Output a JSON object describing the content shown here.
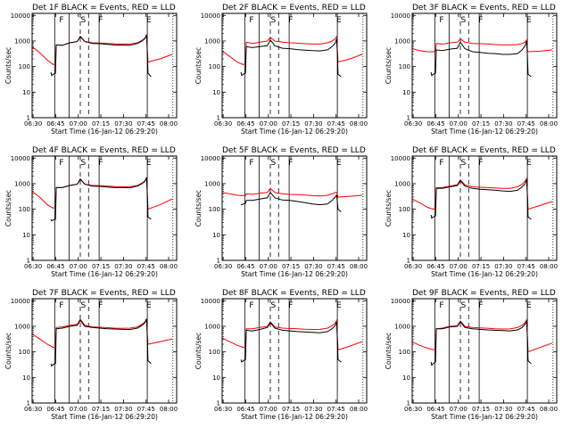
{
  "chart_data": {
    "type": "line",
    "layout": "3x3 grid",
    "shared": {
      "ylabel": "Counts/sec",
      "xlabel": "Start Time (16-Jan-12 06:29:20)",
      "x_tick_labels": [
        "06:30",
        "06:45",
        "07:00",
        "07:15",
        "07:30",
        "07:45",
        "08:00"
      ],
      "x_tick_minutes": [
        0.67,
        15.67,
        30.67,
        45.67,
        60.67,
        75.67,
        90.67
      ],
      "xlim_minutes": [
        0,
        96
      ],
      "y_tick_labels": [
        "1",
        "10",
        "100",
        "1000",
        "10000"
      ],
      "y_tick_values": [
        1,
        10,
        100,
        1000,
        10000
      ],
      "ylim": [
        1,
        12000
      ],
      "yscale": "log",
      "interval_letters": [
        {
          "text": "F",
          "minute": 19.5
        },
        {
          "text": "S",
          "minute": 34.0
        },
        {
          "text": "F",
          "minute": 45.5
        },
        {
          "text": "E",
          "minute": 77.5
        }
      ],
      "solid_lines_minutes": [
        15.0,
        24.5,
        44.5,
        76.5
      ],
      "dashed_lines_minutes": [
        32.0,
        37.5
      ],
      "dotted_lines_minutes": [
        93.5
      ],
      "series": [
        {
          "name": "Events",
          "color": "#000000"
        },
        {
          "name": "LLD",
          "color": "#ff0000"
        }
      ]
    },
    "panels": [
      {
        "title": "Det 1F BLACK = Events, RED = LLD",
        "events_x": [
          12.5,
          13.0,
          14.0,
          15.5,
          16.0,
          20.0,
          25.0,
          30.0,
          32.0,
          35.0,
          40.0,
          45.0,
          50.0,
          55.0,
          60.0,
          65.0,
          70.0,
          73.0,
          75.0,
          76.0,
          76.5,
          77.0,
          79.0
        ],
        "events_y": [
          60,
          45,
          50,
          55,
          700,
          680,
          850,
          950,
          1500,
          950,
          800,
          780,
          740,
          700,
          690,
          680,
          800,
          1000,
          1250,
          1700,
          400,
          55,
          40
        ],
        "lld_x": [
          0.0,
          5.0,
          10.0,
          14.0,
          15.5,
          16.0,
          20.0,
          25.0,
          30.0,
          32.0,
          35.0,
          40.0,
          45.0,
          50.0,
          55.0,
          60.0,
          65.0,
          70.0,
          73.0,
          75.0,
          76.0,
          76.5,
          77.0,
          85.0,
          93.0
        ],
        "lld_y": [
          600,
          350,
          180,
          120,
          130,
          700,
          680,
          850,
          950,
          1500,
          950,
          850,
          830,
          800,
          770,
          760,
          760,
          850,
          1050,
          1300,
          1800,
          450,
          150,
          200,
          300
        ]
      },
      {
        "title": "Det 2F BLACK = Events, RED = LLD",
        "events_x": [
          12.5,
          13.0,
          14.0,
          15.5,
          16.0,
          20.0,
          25.0,
          30.0,
          32.0,
          35.0,
          40.0,
          45.0,
          50.0,
          55.0,
          60.0,
          65.0,
          70.0,
          73.0,
          75.0,
          76.0,
          76.5,
          77.0,
          79.0
        ],
        "events_y": [
          60,
          45,
          50,
          55,
          600,
          550,
          600,
          650,
          1100,
          650,
          520,
          500,
          460,
          440,
          420,
          410,
          450,
          600,
          800,
          1200,
          350,
          50,
          40
        ],
        "lld_x": [
          0.0,
          5.0,
          10.0,
          14.0,
          15.5,
          16.0,
          20.0,
          25.0,
          30.0,
          32.0,
          35.0,
          40.0,
          45.0,
          50.0,
          55.0,
          60.0,
          65.0,
          70.0,
          73.0,
          75.0,
          76.0,
          76.5,
          77.0,
          85.0,
          93.0
        ],
        "lld_y": [
          400,
          250,
          150,
          120,
          130,
          900,
          800,
          900,
          1000,
          1400,
          1000,
          900,
          850,
          820,
          780,
          760,
          760,
          850,
          1000,
          1200,
          1500,
          450,
          150,
          200,
          300
        ]
      },
      {
        "title": "Det 3F BLACK = Events, RED = LLD",
        "events_x": [
          12.5,
          13.0,
          14.0,
          15.5,
          16.0,
          20.0,
          25.0,
          30.0,
          32.0,
          35.0,
          40.0,
          45.0,
          50.0,
          55.0,
          60.0,
          65.0,
          70.0,
          73.0,
          75.0,
          76.0,
          76.5,
          77.0,
          79.0
        ],
        "events_y": [
          60,
          45,
          50,
          55,
          450,
          420,
          480,
          520,
          900,
          500,
          380,
          360,
          330,
          320,
          300,
          300,
          320,
          450,
          650,
          1000,
          300,
          50,
          40
        ],
        "lld_x": [
          0.0,
          5.0,
          10.0,
          14.0,
          15.5,
          16.0,
          20.0,
          25.0,
          30.0,
          32.0,
          35.0,
          40.0,
          45.0,
          50.0,
          55.0,
          60.0,
          65.0,
          70.0,
          73.0,
          75.0,
          76.0,
          76.5,
          77.0,
          85.0,
          93.0
        ],
        "lld_y": [
          500,
          420,
          380,
          380,
          390,
          800,
          750,
          850,
          900,
          1200,
          900,
          800,
          780,
          760,
          720,
          700,
          700,
          720,
          800,
          900,
          1100,
          450,
          380,
          400,
          450
        ]
      },
      {
        "title": "Det 4F BLACK = Events, RED = LLD",
        "events_x": [
          12.5,
          13.0,
          14.0,
          15.5,
          16.0,
          20.0,
          25.0,
          30.0,
          32.0,
          35.0,
          40.0,
          45.0,
          50.0,
          55.0,
          60.0,
          65.0,
          70.0,
          73.0,
          75.0,
          76.0,
          76.5,
          77.0,
          79.0
        ],
        "events_y": [
          40,
          35,
          38,
          40,
          700,
          700,
          850,
          950,
          1500,
          950,
          800,
          780,
          740,
          700,
          700,
          690,
          800,
          1000,
          1250,
          1700,
          400,
          50,
          40
        ],
        "lld_x": [
          0.0,
          5.0,
          10.0,
          14.0,
          15.5,
          16.0,
          20.0,
          25.0,
          30.0,
          32.0,
          35.0,
          40.0,
          45.0,
          50.0,
          55.0,
          60.0,
          65.0,
          70.0,
          73.0,
          75.0,
          76.0,
          76.5,
          77.0,
          85.0,
          93.0
        ],
        "lld_y": [
          500,
          300,
          150,
          110,
          120,
          700,
          700,
          850,
          950,
          1500,
          950,
          850,
          830,
          800,
          770,
          760,
          760,
          850,
          1050,
          1300,
          1800,
          450,
          100,
          150,
          250
        ]
      },
      {
        "title": "Det 5F BLACK = Events, RED = LLD",
        "events_x": [
          12.5,
          13.0,
          14.0,
          15.5,
          16.0,
          20.0,
          25.0,
          30.0,
          32.0,
          35.0,
          40.0,
          45.0,
          50.0,
          55.0,
          60.0,
          65.0,
          70.0,
          73.0,
          75.0,
          76.0,
          76.5,
          77.0,
          79.0
        ],
        "events_y": [
          150,
          150,
          160,
          170,
          220,
          220,
          250,
          280,
          450,
          280,
          230,
          220,
          200,
          180,
          160,
          150,
          160,
          220,
          300,
          350,
          200,
          100,
          80
        ],
        "lld_x": [
          0.0,
          5.0,
          10.0,
          14.0,
          15.5,
          16.0,
          20.0,
          25.0,
          30.0,
          32.0,
          35.0,
          40.0,
          45.0,
          50.0,
          55.0,
          60.0,
          65.0,
          70.0,
          73.0,
          75.0,
          76.0,
          76.5,
          77.0,
          85.0,
          93.0
        ],
        "lld_y": [
          450,
          400,
          350,
          340,
          340,
          400,
          380,
          420,
          450,
          650,
          450,
          400,
          380,
          370,
          360,
          340,
          330,
          350,
          400,
          450,
          450,
          380,
          300,
          320,
          350
        ]
      },
      {
        "title": "Det 6F BLACK = Events, RED = LLD",
        "events_x": [
          12.5,
          13.0,
          14.0,
          15.5,
          16.0,
          20.0,
          25.0,
          30.0,
          32.0,
          35.0,
          40.0,
          45.0,
          50.0,
          55.0,
          60.0,
          65.0,
          70.0,
          73.0,
          75.0,
          76.0,
          76.5,
          77.0,
          79.0
        ],
        "events_y": [
          60,
          45,
          50,
          55,
          650,
          650,
          750,
          850,
          1300,
          800,
          650,
          600,
          580,
          560,
          520,
          500,
          550,
          750,
          1000,
          1500,
          350,
          50,
          40
        ],
        "lld_x": [
          0.0,
          5.0,
          10.0,
          14.0,
          15.5,
          16.0,
          20.0,
          25.0,
          30.0,
          32.0,
          35.0,
          40.0,
          45.0,
          50.0,
          55.0,
          60.0,
          65.0,
          70.0,
          73.0,
          75.0,
          76.0,
          76.5,
          77.0,
          85.0,
          93.0
        ],
        "lld_y": [
          250,
          180,
          120,
          100,
          110,
          700,
          700,
          800,
          900,
          1400,
          900,
          750,
          720,
          700,
          680,
          650,
          650,
          750,
          950,
          1250,
          1600,
          400,
          100,
          140,
          200
        ]
      },
      {
        "title": "Det 7F BLACK = Events, RED = LLD",
        "events_x": [
          12.5,
          13.0,
          14.0,
          15.5,
          16.0,
          20.0,
          25.0,
          30.0,
          32.0,
          35.0,
          40.0,
          45.0,
          50.0,
          55.0,
          60.0,
          65.0,
          70.0,
          73.0,
          75.0,
          76.0,
          76.5,
          77.0,
          79.0
        ],
        "events_y": [
          35,
          28,
          32,
          35,
          800,
          850,
          1000,
          1100,
          1700,
          1000,
          900,
          850,
          800,
          780,
          760,
          750,
          850,
          1100,
          1400,
          1900,
          400,
          45,
          35
        ],
        "lld_x": [
          0.0,
          5.0,
          10.0,
          14.0,
          15.5,
          16.0,
          20.0,
          25.0,
          30.0,
          32.0,
          35.0,
          40.0,
          45.0,
          50.0,
          55.0,
          60.0,
          65.0,
          70.0,
          73.0,
          75.0,
          76.0,
          76.5,
          77.0,
          85.0,
          93.0
        ],
        "lld_y": [
          500,
          320,
          200,
          150,
          160,
          900,
          950,
          1100,
          1200,
          1900,
          1100,
          950,
          920,
          880,
          850,
          830,
          850,
          950,
          1200,
          1500,
          2000,
          500,
          200,
          250,
          320
        ]
      },
      {
        "title": "Det 8F BLACK = Events, RED = LLD",
        "events_x": [
          12.5,
          13.0,
          14.0,
          15.5,
          16.0,
          20.0,
          25.0,
          30.0,
          32.0,
          35.0,
          40.0,
          45.0,
          50.0,
          55.0,
          60.0,
          65.0,
          70.0,
          73.0,
          75.0,
          76.0,
          76.5,
          77.0,
          79.0
        ],
        "events_y": [
          50,
          40,
          45,
          50,
          700,
          650,
          750,
          900,
          1400,
          850,
          700,
          660,
          620,
          600,
          580,
          560,
          620,
          800,
          1050,
          1500,
          350,
          50,
          40
        ],
        "lld_x": [
          0.0,
          5.0,
          10.0,
          14.0,
          15.5,
          16.0,
          20.0,
          25.0,
          30.0,
          32.0,
          35.0,
          40.0,
          45.0,
          50.0,
          55.0,
          60.0,
          65.0,
          70.0,
          73.0,
          75.0,
          76.0,
          76.5,
          77.0,
          85.0,
          93.0
        ],
        "lld_y": [
          350,
          250,
          180,
          150,
          160,
          800,
          800,
          900,
          1000,
          1500,
          950,
          850,
          820,
          800,
          770,
          750,
          760,
          850,
          1050,
          1300,
          1700,
          420,
          120,
          170,
          250
        ]
      },
      {
        "title": "Det 9F BLACK = Events, RED = LLD",
        "events_x": [
          12.5,
          13.0,
          14.0,
          15.5,
          16.0,
          20.0,
          25.0,
          30.0,
          32.0,
          35.0,
          40.0,
          45.0,
          50.0,
          55.0,
          60.0,
          65.0,
          70.0,
          73.0,
          75.0,
          76.0,
          76.5,
          77.0,
          79.0
        ],
        "events_y": [
          40,
          30,
          35,
          40,
          800,
          800,
          950,
          1000,
          1500,
          900,
          800,
          760,
          720,
          700,
          680,
          660,
          720,
          900,
          1200,
          1700,
          380,
          45,
          35
        ],
        "lld_x": [
          0.0,
          5.0,
          10.0,
          14.0,
          15.5,
          16.0,
          20.0,
          25.0,
          30.0,
          32.0,
          35.0,
          40.0,
          45.0,
          50.0,
          55.0,
          60.0,
          65.0,
          70.0,
          73.0,
          75.0,
          76.0,
          76.5,
          77.0,
          85.0,
          93.0
        ],
        "lld_y": [
          250,
          180,
          140,
          120,
          130,
          800,
          850,
          1000,
          1050,
          1600,
          1000,
          900,
          870,
          840,
          800,
          780,
          790,
          900,
          1100,
          1400,
          1800,
          450,
          100,
          150,
          220
        ]
      }
    ]
  }
}
